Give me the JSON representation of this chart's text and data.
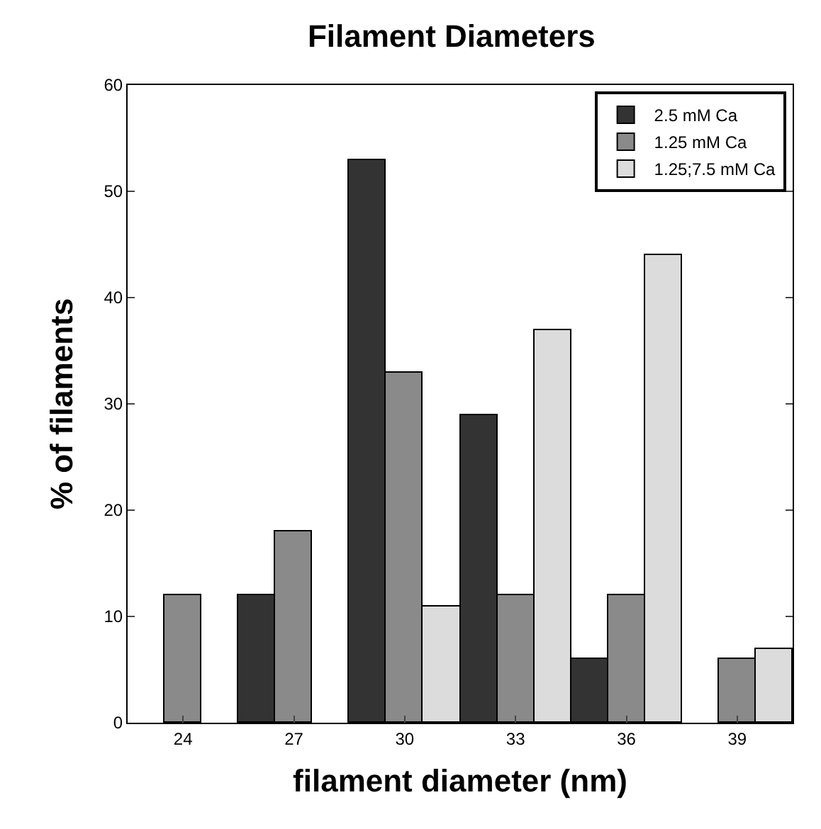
{
  "chart_data": {
    "type": "bar",
    "title": "Filament Diameters",
    "xlabel": "filament diameter (nm)",
    "ylabel": "% of filaments",
    "categories": [
      "24",
      "27",
      "30",
      "33",
      "36",
      "39"
    ],
    "series": [
      {
        "name": "2.5 mM Ca",
        "color": "#333333",
        "values": [
          null,
          12,
          53,
          29,
          6,
          null
        ]
      },
      {
        "name": "1.25 mM Ca",
        "color": "#8a8a8a",
        "values": [
          12,
          18,
          33,
          12,
          12,
          6
        ]
      },
      {
        "name": "1.25;7.5 mM Ca",
        "color": "#dcdcdc",
        "values": [
          null,
          null,
          11,
          37,
          44,
          7
        ]
      }
    ],
    "ylim": [
      0,
      60
    ],
    "yticks": [
      0,
      10,
      20,
      30,
      40,
      50,
      60
    ],
    "legend": "top right"
  }
}
